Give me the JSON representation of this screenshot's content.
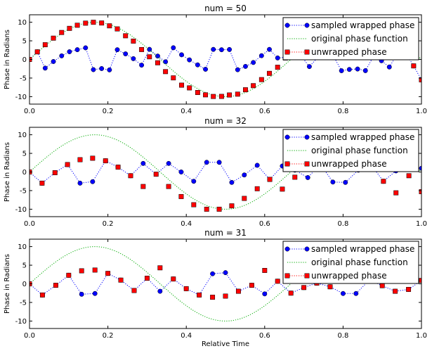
{
  "figure": {
    "xlabel": "Relative Time"
  },
  "chart_data": [
    {
      "type": "line",
      "title": "num = 50",
      "ylabel": "Phase in Radians",
      "xlim": [
        0,
        1
      ],
      "ylim": [
        -12,
        12
      ],
      "xticks": [
        "0.0",
        "0.2",
        "0.4",
        "0.6",
        "0.8",
        "1.0"
      ],
      "yticks": [
        "10",
        "5",
        "0",
        "-5",
        "-10"
      ],
      "ytick_values": [
        10,
        5,
        0,
        -5,
        -10
      ],
      "legend": {
        "position": "top-right"
      },
      "series": [
        {
          "name": "sampled wrapped phase",
          "marker": "circle",
          "line": "dotted",
          "color": "#0000ff",
          "points": [
            [
              0.0,
              0.0
            ],
            [
              0.02,
              2.04
            ],
            [
              0.04,
              -2.33
            ],
            [
              0.061,
              -0.56
            ],
            [
              0.082,
              0.96
            ],
            [
              0.102,
              2.07
            ],
            [
              0.122,
              2.62
            ],
            [
              0.143,
              3.12
            ],
            [
              0.163,
              -2.74
            ],
            [
              0.184,
              -2.45
            ],
            [
              0.204,
              -2.81
            ],
            [
              0.224,
              2.61
            ],
            [
              0.245,
              1.5
            ],
            [
              0.265,
              0.21
            ],
            [
              0.286,
              -1.53
            ],
            [
              0.306,
              2.71
            ],
            [
              0.327,
              0.91
            ],
            [
              0.347,
              -0.63
            ],
            [
              0.367,
              3.14
            ],
            [
              0.388,
              1.25
            ],
            [
              0.408,
              -0.12
            ],
            [
              0.429,
              -1.46
            ],
            [
              0.449,
              -2.64
            ],
            [
              0.469,
              2.7
            ],
            [
              0.49,
              2.61
            ],
            [
              0.51,
              2.67
            ],
            [
              0.531,
              -2.76
            ],
            [
              0.551,
              -1.87
            ],
            [
              0.571,
              -0.82
            ],
            [
              0.592,
              1.01
            ],
            [
              0.612,
              2.7
            ],
            [
              0.633,
              0.4
            ],
            [
              0.653,
              0.6
            ],
            [
              0.673,
              0.6
            ],
            [
              0.694,
              0.8
            ],
            [
              0.714,
              -1.92
            ],
            [
              0.735,
              0.5
            ],
            [
              0.755,
              1.0
            ],
            [
              0.776,
              0.8
            ],
            [
              0.796,
              -3.03
            ],
            [
              0.816,
              -2.69
            ],
            [
              0.837,
              -2.57
            ],
            [
              0.857,
              -3.01
            ],
            [
              0.878,
              0.9
            ],
            [
              0.898,
              -0.35
            ],
            [
              0.918,
              -2.03
            ],
            [
              0.939,
              1.5
            ],
            [
              0.959,
              1.8
            ],
            [
              0.98,
              -1.74
            ],
            [
              1.0,
              -5.5
            ]
          ]
        },
        {
          "name": "original phase function",
          "marker": "none",
          "line": "dotted",
          "color": "#00aa00",
          "function": "10*sin(3*pi*t)",
          "points": []
        },
        {
          "name": "unwrapped phase",
          "marker": "square",
          "line": "none",
          "color": "#ff0000",
          "points": [
            [
              0.0,
              0.0
            ],
            [
              0.02,
              2.04
            ],
            [
              0.04,
              3.95
            ],
            [
              0.061,
              5.72
            ],
            [
              0.082,
              7.24
            ],
            [
              0.102,
              8.35
            ],
            [
              0.122,
              9.19
            ],
            [
              0.143,
              9.75
            ],
            [
              0.163,
              9.98
            ],
            [
              0.184,
              9.79
            ],
            [
              0.204,
              9.03
            ],
            [
              0.224,
              8.2
            ],
            [
              0.245,
              6.36
            ],
            [
              0.265,
              4.93
            ],
            [
              0.286,
              2.66
            ],
            [
              0.306,
              0.71
            ],
            [
              0.327,
              -0.9
            ],
            [
              0.347,
              -3.27
            ],
            [
              0.367,
              -4.95
            ],
            [
              0.388,
              -6.91
            ],
            [
              0.408,
              -7.64
            ],
            [
              0.429,
              -8.88
            ],
            [
              0.449,
              -9.51
            ],
            [
              0.469,
              -9.95
            ],
            [
              0.49,
              -9.93
            ],
            [
              0.51,
              -9.55
            ],
            [
              0.531,
              -9.32
            ],
            [
              0.551,
              -8.15
            ],
            [
              0.571,
              -7.04
            ],
            [
              0.592,
              -5.42
            ],
            [
              0.612,
              -3.74
            ],
            [
              0.633,
              -2.1
            ],
            [
              0.653,
              0.4
            ],
            [
              0.673,
              2.1
            ],
            [
              0.694,
              3.9
            ],
            [
              0.714,
              5.6
            ],
            [
              0.735,
              7.3
            ],
            [
              0.755,
              8.5
            ],
            [
              0.776,
              9.3
            ],
            [
              0.796,
              9.9
            ],
            [
              0.816,
              10.0
            ],
            [
              0.837,
              9.6
            ],
            [
              0.857,
              8.8
            ],
            [
              0.878,
              7.6
            ],
            [
              0.898,
              5.9
            ],
            [
              0.918,
              4.3
            ],
            [
              0.939,
              2.5
            ],
            [
              0.959,
              0.7
            ],
            [
              0.98,
              -1.74
            ],
            [
              1.0,
              -5.5
            ]
          ]
        }
      ]
    },
    {
      "type": "line",
      "title": "num = 32",
      "ylabel": "Phase in Radians",
      "xlim": [
        0,
        1
      ],
      "ylim": [
        -12,
        12
      ],
      "xticks": [
        "0.0",
        "0.2",
        "0.4",
        "0.6",
        "0.8",
        "1.0"
      ],
      "yticks": [
        "10",
        "5",
        "0",
        "-5",
        "-10"
      ],
      "ytick_values": [
        10,
        5,
        0,
        -5,
        -10
      ],
      "legend": {
        "position": "top-right"
      },
      "series": [
        {
          "name": "sampled wrapped phase",
          "marker": "circle",
          "line": "dotted",
          "color": "#0000ff",
          "points": [
            [
              0.0,
              0.0
            ],
            [
              0.032,
              -3.0
            ],
            [
              0.065,
              -0.2
            ],
            [
              0.097,
              2.0
            ],
            [
              0.129,
              -3.0
            ],
            [
              0.161,
              -2.6
            ],
            [
              0.194,
              3.0
            ],
            [
              0.226,
              1.3
            ],
            [
              0.258,
              -1.0
            ],
            [
              0.29,
              2.3
            ],
            [
              0.323,
              -0.6
            ],
            [
              0.355,
              2.3
            ],
            [
              0.387,
              0.0
            ],
            [
              0.419,
              -2.5
            ],
            [
              0.452,
              2.6
            ],
            [
              0.484,
              2.6
            ],
            [
              0.516,
              -2.8
            ],
            [
              0.548,
              -0.8
            ],
            [
              0.581,
              1.8
            ],
            [
              0.613,
              -2.0
            ],
            [
              0.645,
              1.6
            ],
            [
              0.677,
              0.5
            ],
            [
              0.71,
              -1.5
            ],
            [
              0.742,
              2.1
            ],
            [
              0.774,
              -2.7
            ],
            [
              0.806,
              -2.8
            ],
            [
              0.839,
              0.5
            ],
            [
              0.871,
              2.0
            ],
            [
              0.903,
              -2.5
            ],
            [
              0.935,
              0.3
            ],
            [
              0.968,
              1.0
            ],
            [
              1.0,
              1.0
            ]
          ]
        },
        {
          "name": "original phase function",
          "marker": "none",
          "line": "dotted",
          "color": "#00aa00",
          "function": "10*sin(3*pi*t)",
          "points": []
        },
        {
          "name": "unwrapped phase",
          "marker": "square",
          "line": "none",
          "color": "#ff0000",
          "points": [
            [
              0.0,
              0.0
            ],
            [
              0.032,
              -3.0
            ],
            [
              0.065,
              -0.2
            ],
            [
              0.097,
              2.0
            ],
            [
              0.129,
              3.3
            ],
            [
              0.161,
              3.7
            ],
            [
              0.194,
              3.0
            ],
            [
              0.226,
              1.3
            ],
            [
              0.258,
              -1.0
            ],
            [
              0.29,
              -3.9
            ],
            [
              0.323,
              -0.6
            ],
            [
              0.355,
              -3.9
            ],
            [
              0.387,
              -6.6
            ],
            [
              0.419,
              -8.8
            ],
            [
              0.452,
              -10.0
            ],
            [
              0.484,
              -10.0
            ],
            [
              0.516,
              -9.1
            ],
            [
              0.548,
              -7.1
            ],
            [
              0.581,
              -4.5
            ],
            [
              0.613,
              -2.0
            ],
            [
              0.645,
              -4.6
            ],
            [
              0.677,
              -1.4
            ],
            [
              0.71,
              1.0
            ],
            [
              0.742,
              3.6
            ],
            [
              0.774,
              6.8
            ],
            [
              0.806,
              8.3
            ],
            [
              0.839,
              9.4
            ],
            [
              0.871,
              6.7
            ],
            [
              0.903,
              -2.5
            ],
            [
              0.935,
              -5.6
            ],
            [
              0.968,
              -1.0
            ],
            [
              1.0,
              -5.3
            ]
          ]
        }
      ]
    },
    {
      "type": "line",
      "title": "num = 31",
      "ylabel": "Phase in Radians",
      "xlabel": "Relative Time",
      "xlim": [
        0,
        1
      ],
      "ylim": [
        -12,
        12
      ],
      "xticks": [
        "0.0",
        "0.2",
        "0.4",
        "0.6",
        "0.8",
        "1.0"
      ],
      "yticks": [
        "10",
        "5",
        "0",
        "-5",
        "-10"
      ],
      "ytick_values": [
        10,
        5,
        0,
        -5,
        -10
      ],
      "legend": {
        "position": "top-right"
      },
      "series": [
        {
          "name": "sampled wrapped phase",
          "marker": "circle",
          "line": "dotted",
          "color": "#0000ff",
          "points": [
            [
              0.0,
              0.0
            ],
            [
              0.033,
              -3.0
            ],
            [
              0.067,
              -0.4
            ],
            [
              0.1,
              2.3
            ],
            [
              0.133,
              -2.8
            ],
            [
              0.167,
              -2.6
            ],
            [
              0.2,
              2.8
            ],
            [
              0.233,
              1.0
            ],
            [
              0.267,
              -1.8
            ],
            [
              0.3,
              1.5
            ],
            [
              0.333,
              -2.0
            ],
            [
              0.367,
              1.3
            ],
            [
              0.4,
              -1.3
            ],
            [
              0.433,
              -3.0
            ],
            [
              0.467,
              2.7
            ],
            [
              0.5,
              3.0
            ],
            [
              0.533,
              -2.0
            ],
            [
              0.567,
              -0.4
            ],
            [
              0.6,
              -2.7
            ],
            [
              0.633,
              0.7
            ],
            [
              0.667,
              -2.5
            ],
            [
              0.7,
              -1.0
            ],
            [
              0.733,
              0.2
            ],
            [
              0.767,
              -0.8
            ],
            [
              0.8,
              -2.6
            ],
            [
              0.833,
              -2.6
            ],
            [
              0.867,
              1.0
            ],
            [
              0.9,
              -0.5
            ],
            [
              0.933,
              -2.0
            ],
            [
              0.967,
              -1.5
            ],
            [
              1.0,
              0.9
            ]
          ]
        },
        {
          "name": "original phase function",
          "marker": "none",
          "line": "dotted",
          "color": "#00aa00",
          "function": "10*sin(3*pi*t)",
          "points": []
        },
        {
          "name": "unwrapped phase",
          "marker": "square",
          "line": "none",
          "color": "#ff0000",
          "points": [
            [
              0.0,
              0.0
            ],
            [
              0.033,
              -3.0
            ],
            [
              0.067,
              -0.4
            ],
            [
              0.1,
              2.3
            ],
            [
              0.133,
              3.5
            ],
            [
              0.167,
              3.7
            ],
            [
              0.2,
              2.8
            ],
            [
              0.233,
              1.0
            ],
            [
              0.267,
              -1.8
            ],
            [
              0.3,
              1.5
            ],
            [
              0.333,
              4.3
            ],
            [
              0.367,
              1.3
            ],
            [
              0.4,
              -1.3
            ],
            [
              0.433,
              -3.0
            ],
            [
              0.467,
              -3.6
            ],
            [
              0.5,
              -3.3
            ],
            [
              0.533,
              -2.0
            ],
            [
              0.567,
              -0.4
            ],
            [
              0.6,
              3.6
            ],
            [
              0.633,
              0.7
            ],
            [
              0.667,
              -2.5
            ],
            [
              0.7,
              -1.0
            ],
            [
              0.733,
              0.2
            ],
            [
              0.767,
              -0.8
            ],
            [
              0.8,
              3.7
            ],
            [
              0.833,
              3.7
            ],
            [
              0.867,
              1.0
            ],
            [
              0.9,
              -0.5
            ],
            [
              0.933,
              -2.0
            ],
            [
              0.967,
              -1.5
            ],
            [
              1.0,
              0.9
            ]
          ]
        }
      ]
    }
  ]
}
